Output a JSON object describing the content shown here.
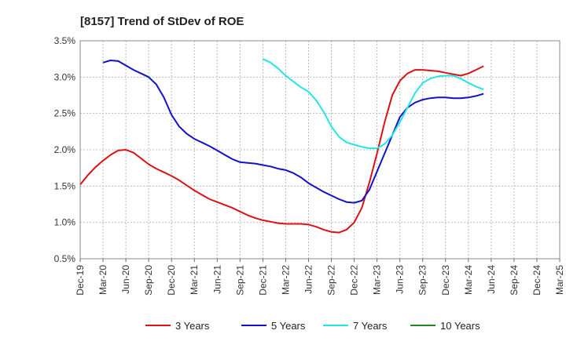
{
  "chart_data": {
    "type": "line",
    "title": "[8157]  Trend of StDev of ROE",
    "xlabel": "",
    "ylabel": "",
    "ylim": [
      0.5,
      3.5
    ],
    "y_ticks": [
      0.5,
      1.0,
      1.5,
      2.0,
      2.5,
      3.0,
      3.5
    ],
    "y_tick_labels": [
      "0.5%",
      "1.0%",
      "1.5%",
      "2.0%",
      "2.5%",
      "3.0%",
      "3.5%"
    ],
    "x_tick_labels": [
      "Dec-19",
      "Mar-20",
      "Jun-20",
      "Sep-20",
      "Dec-20",
      "Mar-21",
      "Jun-21",
      "Sep-21",
      "Dec-21",
      "Mar-22",
      "Jun-22",
      "Sep-22",
      "Dec-22",
      "Mar-23",
      "Jun-23",
      "Sep-23",
      "Dec-23",
      "Mar-24",
      "Jun-24",
      "Sep-24",
      "Dec-24",
      "Mar-25"
    ],
    "grid": true,
    "legend_position": "bottom",
    "series": [
      {
        "name": "3 Years",
        "color": "#dd1111",
        "points": [
          [
            0,
            1.52
          ],
          [
            1,
            1.65
          ],
          [
            2,
            1.76
          ],
          [
            3,
            1.85
          ],
          [
            4,
            1.93
          ],
          [
            5,
            1.99
          ],
          [
            6,
            2.0
          ],
          [
            7,
            1.96
          ],
          [
            8,
            1.88
          ],
          [
            9,
            1.8
          ],
          [
            10,
            1.74
          ],
          [
            11,
            1.69
          ],
          [
            12,
            1.64
          ],
          [
            13,
            1.58
          ],
          [
            14,
            1.51
          ],
          [
            15,
            1.44
          ],
          [
            16,
            1.38
          ],
          [
            17,
            1.32
          ],
          [
            18,
            1.28
          ],
          [
            19,
            1.24
          ],
          [
            20,
            1.2
          ],
          [
            21,
            1.15
          ],
          [
            22,
            1.1
          ],
          [
            23,
            1.06
          ],
          [
            24,
            1.03
          ],
          [
            25,
            1.01
          ],
          [
            26,
            0.99
          ],
          [
            27,
            0.98
          ],
          [
            28,
            0.98
          ],
          [
            29,
            0.98
          ],
          [
            30,
            0.97
          ],
          [
            31,
            0.94
          ],
          [
            32,
            0.9
          ],
          [
            33,
            0.87
          ],
          [
            34,
            0.86
          ],
          [
            35,
            0.9
          ],
          [
            36,
            1.0
          ],
          [
            37,
            1.2
          ],
          [
            38,
            1.55
          ],
          [
            39,
            1.95
          ],
          [
            40,
            2.38
          ],
          [
            41,
            2.75
          ],
          [
            42,
            2.95
          ],
          [
            43,
            3.05
          ],
          [
            44,
            3.1
          ],
          [
            45,
            3.1
          ],
          [
            46,
            3.09
          ],
          [
            47,
            3.08
          ],
          [
            48,
            3.06
          ],
          [
            49,
            3.04
          ],
          [
            50,
            3.02
          ],
          [
            51,
            3.05
          ],
          [
            52,
            3.1
          ],
          [
            53,
            3.15
          ]
        ]
      },
      {
        "name": "5 Years",
        "color": "#1111cc",
        "points": [
          [
            3,
            3.2
          ],
          [
            4,
            3.23
          ],
          [
            5,
            3.22
          ],
          [
            6,
            3.16
          ],
          [
            7,
            3.1
          ],
          [
            8,
            3.05
          ],
          [
            9,
            3.0
          ],
          [
            10,
            2.9
          ],
          [
            11,
            2.72
          ],
          [
            12,
            2.48
          ],
          [
            13,
            2.32
          ],
          [
            14,
            2.22
          ],
          [
            15,
            2.15
          ],
          [
            16,
            2.1
          ],
          [
            17,
            2.05
          ],
          [
            18,
            1.99
          ],
          [
            19,
            1.93
          ],
          [
            20,
            1.87
          ],
          [
            21,
            1.83
          ],
          [
            22,
            1.82
          ],
          [
            23,
            1.81
          ],
          [
            24,
            1.79
          ],
          [
            25,
            1.77
          ],
          [
            26,
            1.74
          ],
          [
            27,
            1.72
          ],
          [
            28,
            1.68
          ],
          [
            29,
            1.62
          ],
          [
            30,
            1.54
          ],
          [
            31,
            1.48
          ],
          [
            32,
            1.42
          ],
          [
            33,
            1.37
          ],
          [
            34,
            1.32
          ],
          [
            35,
            1.28
          ],
          [
            36,
            1.27
          ],
          [
            37,
            1.3
          ],
          [
            38,
            1.45
          ],
          [
            39,
            1.7
          ],
          [
            40,
            1.95
          ],
          [
            41,
            2.2
          ],
          [
            42,
            2.45
          ],
          [
            43,
            2.58
          ],
          [
            44,
            2.65
          ],
          [
            45,
            2.69
          ],
          [
            46,
            2.71
          ],
          [
            47,
            2.72
          ],
          [
            48,
            2.72
          ],
          [
            49,
            2.71
          ],
          [
            50,
            2.71
          ],
          [
            51,
            2.72
          ],
          [
            52,
            2.74
          ],
          [
            53,
            2.77
          ]
        ]
      },
      {
        "name": "7 Years",
        "color": "#22e5e5",
        "points": [
          [
            24,
            3.25
          ],
          [
            25,
            3.2
          ],
          [
            26,
            3.12
          ],
          [
            27,
            3.02
          ],
          [
            28,
            2.94
          ],
          [
            29,
            2.86
          ],
          [
            30,
            2.8
          ],
          [
            31,
            2.68
          ],
          [
            32,
            2.52
          ],
          [
            33,
            2.32
          ],
          [
            34,
            2.18
          ],
          [
            35,
            2.1
          ],
          [
            36,
            2.07
          ],
          [
            37,
            2.04
          ],
          [
            38,
            2.02
          ],
          [
            39,
            2.02
          ],
          [
            40,
            2.08
          ],
          [
            41,
            2.2
          ],
          [
            42,
            2.38
          ],
          [
            43,
            2.58
          ],
          [
            44,
            2.78
          ],
          [
            45,
            2.92
          ],
          [
            46,
            2.98
          ],
          [
            47,
            3.01
          ],
          [
            48,
            3.02
          ],
          [
            49,
            3.02
          ],
          [
            50,
            2.98
          ],
          [
            51,
            2.92
          ],
          [
            52,
            2.87
          ],
          [
            53,
            2.83
          ]
        ]
      },
      {
        "name": "10 Years",
        "color": "#228822",
        "points": []
      }
    ]
  }
}
